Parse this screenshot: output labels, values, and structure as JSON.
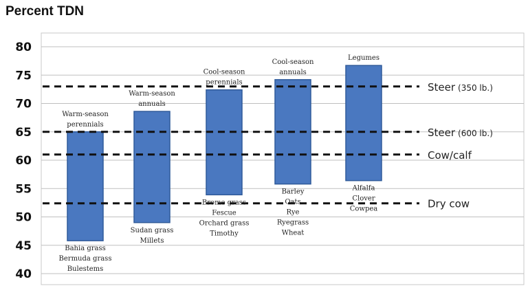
{
  "chart_data": {
    "type": "bar",
    "title": "Percent TDN",
    "xlabel": "",
    "ylabel": "",
    "ylim": [
      40,
      80
    ],
    "yticks": [
      40,
      45,
      50,
      55,
      60,
      65,
      70,
      75,
      80
    ],
    "grid": true,
    "colors": {
      "bar": "#4a78c0",
      "bar_edge": "#2f5a9a",
      "grid": "#bfbfbf",
      "reference": "#111111"
    },
    "categories": [
      {
        "top_label": [
          "Warm-season",
          "perennials"
        ],
        "bottom_label": [
          "Bahia grass",
          "Bermuda grass",
          "Bulestems"
        ],
        "low": 45.8,
        "high": 65
      },
      {
        "top_label": [
          "Warm-season",
          "annuals"
        ],
        "bottom_label": [
          "Sudan grass",
          "Millets"
        ],
        "low": 49,
        "high": 68.6
      },
      {
        "top_label": [
          "Cool-season",
          "perennials"
        ],
        "bottom_label": [
          "Brome grass",
          "Fescue",
          "Orchard grass",
          "Timothy"
        ],
        "low": 53.9,
        "high": 72.4
      },
      {
        "top_label": [
          "Cool-season",
          "annuals"
        ],
        "bottom_label": [
          "Barley",
          "Oats",
          "Rye",
          "Ryegrass",
          "Wheat"
        ],
        "low": 55.8,
        "high": 74.2
      },
      {
        "top_label": [
          "Legumes"
        ],
        "bottom_label": [
          "Alfalfa",
          "Clover",
          "Cowpea"
        ],
        "low": 56.4,
        "high": 76.7
      }
    ],
    "reference_lines": [
      {
        "name": "Steer",
        "detail": "(350 lb.)",
        "value": 73
      },
      {
        "name": "Steer",
        "detail": "(600 lb.)",
        "value": 65
      },
      {
        "name": "Cow/calf",
        "detail": "",
        "value": 61
      },
      {
        "name": "Dry cow",
        "detail": "",
        "value": 52.4
      }
    ]
  }
}
